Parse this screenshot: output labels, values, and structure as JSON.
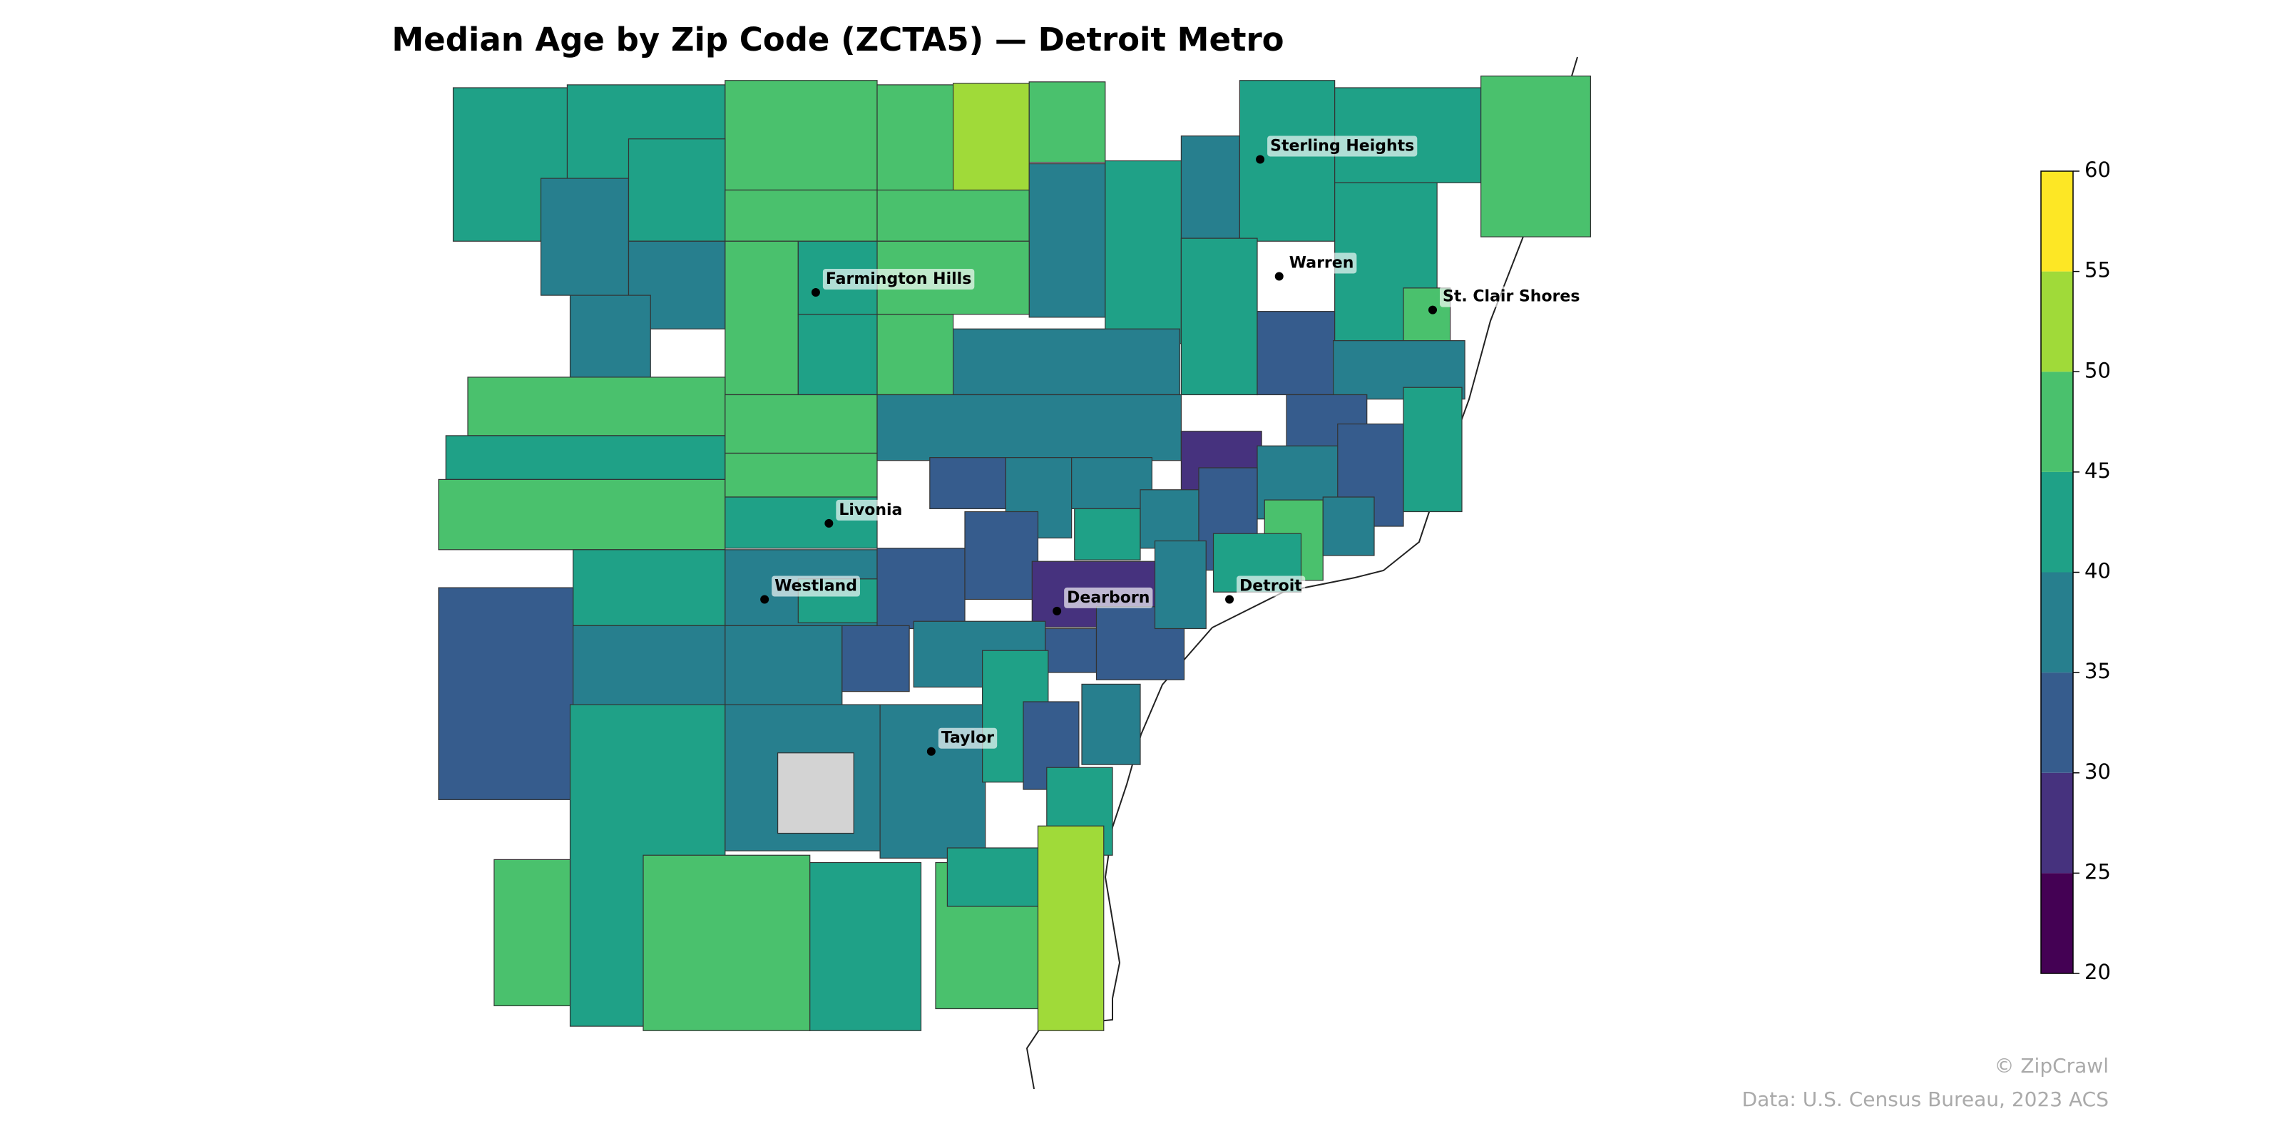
{
  "chart_data": {
    "type": "choropleth",
    "title": "Median Age by Zip Code (ZCTA5) — Detroit Metro",
    "values": [
      42,
      42,
      47,
      47,
      52,
      47,
      38,
      42,
      42,
      47,
      38,
      42,
      47,
      38,
      47,
      42,
      47,
      38,
      42,
      47,
      42,
      47,
      38,
      42,
      33,
      42,
      47,
      38,
      38,
      47,
      42,
      47,
      47,
      47,
      42,
      38,
      33,
      38,
      38,
      28,
      33,
      38,
      33,
      42,
      42,
      38,
      33,
      47,
      38,
      42,
      33,
      38,
      42,
      33,
      33,
      28,
      38,
      33,
      33,
      38,
      42,
      38,
      38,
      33,
      42,
      38,
      null,
      38,
      42,
      33,
      38,
      42,
      47,
      47,
      42,
      47,
      42,
      52
    ],
    "missing_color": "#d3d3d3",
    "border_color": "#333333",
    "cities": [
      "Sterling Heights",
      "Farmington Hills",
      "Warren",
      "St. Clair Shores",
      "Livonia",
      "Westland",
      "Dearborn",
      "Detroit",
      "Taylor"
    ],
    "colorbar": {
      "ylim": [
        20,
        60
      ],
      "yticks": [
        20,
        25,
        30,
        35,
        40,
        45,
        50,
        55,
        60
      ],
      "colors": [
        "#440154",
        "#46327e",
        "#365c8d",
        "#277f8e",
        "#1fa187",
        "#4ac16d",
        "#a0da39",
        "#fde725"
      ]
    },
    "credit": "© ZipCrawl",
    "source": "Data: U.S. Census Bureau, 2023 ACS"
  }
}
